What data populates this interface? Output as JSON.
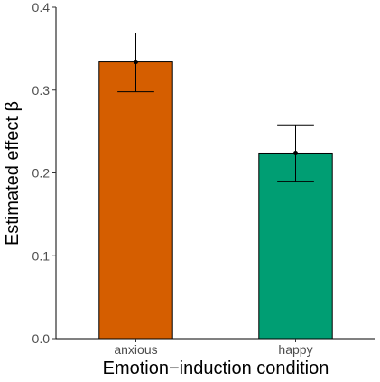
{
  "chart_data": {
    "type": "bar",
    "title": "",
    "xlabel": "Emotion−induction condition",
    "ylabel": "Estimated effect β",
    "categories": [
      "anxious",
      "happy"
    ],
    "values": [
      0.334,
      0.224
    ],
    "error_low": [
      0.298,
      0.19
    ],
    "error_high": [
      0.369,
      0.258
    ],
    "colors": [
      "#D55E00",
      "#009E73"
    ],
    "ylim": [
      0,
      0.4
    ],
    "yticks": [
      0.0,
      0.1,
      0.2,
      0.3,
      0.4
    ],
    "ytick_labels": [
      "0.0",
      "0.1",
      "0.2",
      "0.3",
      "0.4"
    ],
    "grid": false,
    "legend": "none"
  }
}
